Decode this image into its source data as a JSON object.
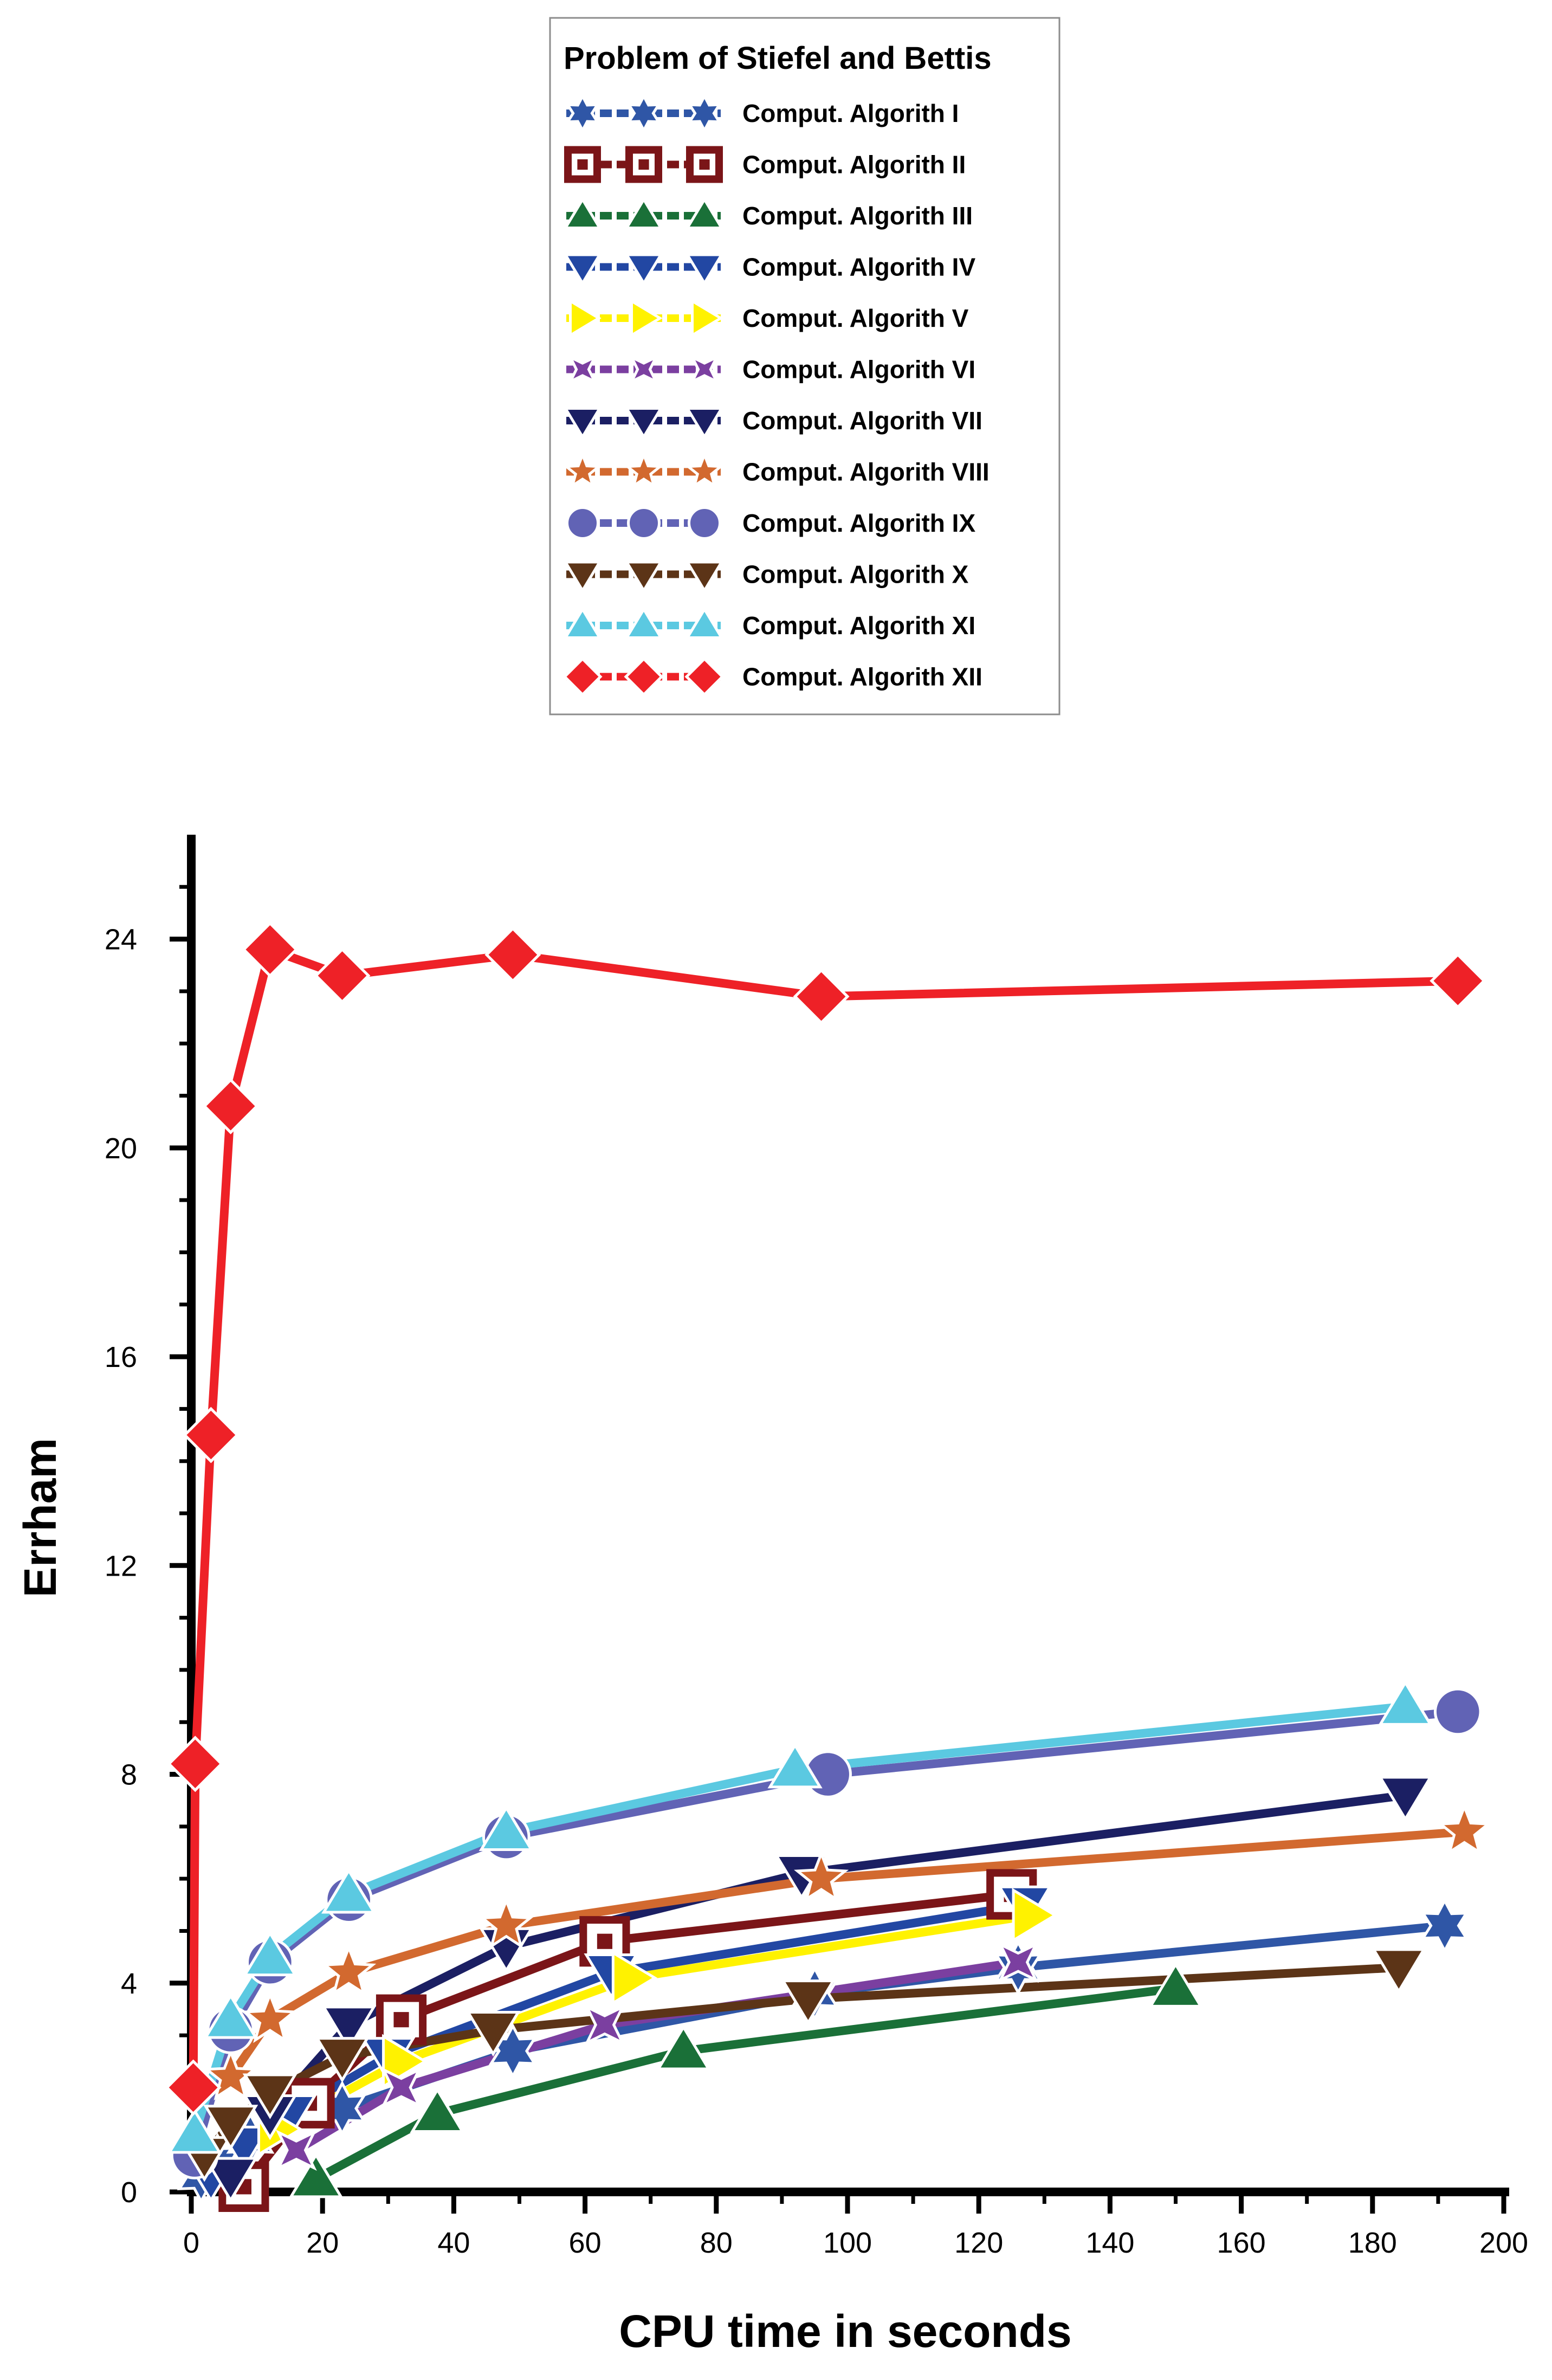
{
  "chart_data": {
    "type": "line",
    "title": "",
    "xlabel": "CPU time in seconds",
    "ylabel": "Errham",
    "xlim": [
      0,
      200
    ],
    "ylim": [
      0,
      26
    ],
    "x_ticks": [
      0,
      20,
      40,
      60,
      80,
      100,
      120,
      140,
      160,
      180,
      200
    ],
    "y_ticks": [
      0,
      4,
      8,
      12,
      16,
      20,
      24
    ],
    "legend_title": "Problem of Stiefel and Bettis",
    "legend_position": "top-center",
    "series": [
      {
        "name": "Comput. Algorith I",
        "color": "#2f56a6",
        "marker": "star6",
        "x": [
          1.5,
          4,
          9,
          23,
          49,
          95,
          126,
          191
        ],
        "y": [
          0.3,
          0.6,
          1.0,
          1.6,
          2.7,
          3.8,
          4.3,
          5.1
        ]
      },
      {
        "name": "Comput. Algorith II",
        "color": "#7b1518",
        "marker": "square-open",
        "x": [
          8,
          18,
          32,
          63,
          125
        ],
        "y": [
          0.1,
          1.7,
          3.3,
          4.8,
          5.7
        ]
      },
      {
        "name": "Comput. Algorith III",
        "color": "#1a7038",
        "marker": "triangle-up",
        "x": [
          19,
          37.5,
          75,
          150
        ],
        "y": [
          0.25,
          1.5,
          2.7,
          3.9
        ]
      },
      {
        "name": "Comput. Algorith IV",
        "color": "#2247a3",
        "marker": "triangle-down",
        "x": [
          3,
          8,
          15,
          30,
          64,
          127
        ],
        "y": [
          0.3,
          0.9,
          1.5,
          2.6,
          4.2,
          5.5
        ]
      },
      {
        "name": "Comput. Algorith V",
        "color": "#fff200",
        "marker": "triangle-right",
        "x": [
          13,
          32,
          67,
          128
        ],
        "y": [
          1.2,
          2.5,
          4.1,
          5.3
        ]
      },
      {
        "name": "Comput. Algorith VI",
        "color": "#7b3fa0",
        "marker": "star4",
        "x": [
          16,
          32,
          63,
          126
        ],
        "y": [
          0.8,
          2.0,
          3.2,
          4.4
        ]
      },
      {
        "name": "Comput. Algorith VII",
        "color": "#1b1f63",
        "marker": "triangle-down",
        "x": [
          6,
          12,
          24,
          48,
          93,
          185
        ],
        "y": [
          0.3,
          1.5,
          3.2,
          4.7,
          6.1,
          7.6
        ]
      },
      {
        "name": "Comput. Algorith VIII",
        "color": "#d2692f",
        "marker": "star5",
        "x": [
          6,
          12,
          24,
          48,
          96,
          194
        ],
        "y": [
          2.2,
          3.3,
          4.2,
          5.1,
          6.0,
          6.9
        ]
      },
      {
        "name": "Comput. Algorith IX",
        "color": "#6163b5",
        "marker": "circle",
        "x": [
          0.5,
          6,
          12,
          24,
          48,
          97,
          193
        ],
        "y": [
          0.7,
          3.1,
          4.4,
          5.6,
          6.8,
          8.0,
          9.2
        ]
      },
      {
        "name": "Comput. Algorith X",
        "color": "#5c3417",
        "marker": "triangle-down",
        "x": [
          2,
          6,
          12,
          23,
          46,
          94,
          184
        ],
        "y": [
          0.7,
          1.3,
          1.9,
          2.6,
          3.1,
          3.7,
          4.3
        ]
      },
      {
        "name": "Comput. Algorith XI",
        "color": "#5bc9e1",
        "marker": "triangle-up",
        "x": [
          0.5,
          6,
          12,
          24,
          48,
          92,
          185
        ],
        "y": [
          1.1,
          3.3,
          4.5,
          5.7,
          6.9,
          8.1,
          9.3
        ]
      },
      {
        "name": "Comput. Algorith XII",
        "color": "#ee2127",
        "marker": "diamond",
        "x": [
          0.3,
          0.6,
          3,
          6,
          12,
          23,
          49,
          96,
          193
        ],
        "y": [
          2.0,
          8.2,
          14.5,
          20.8,
          23.8,
          23.3,
          23.7,
          22.9,
          23.2
        ]
      }
    ]
  }
}
